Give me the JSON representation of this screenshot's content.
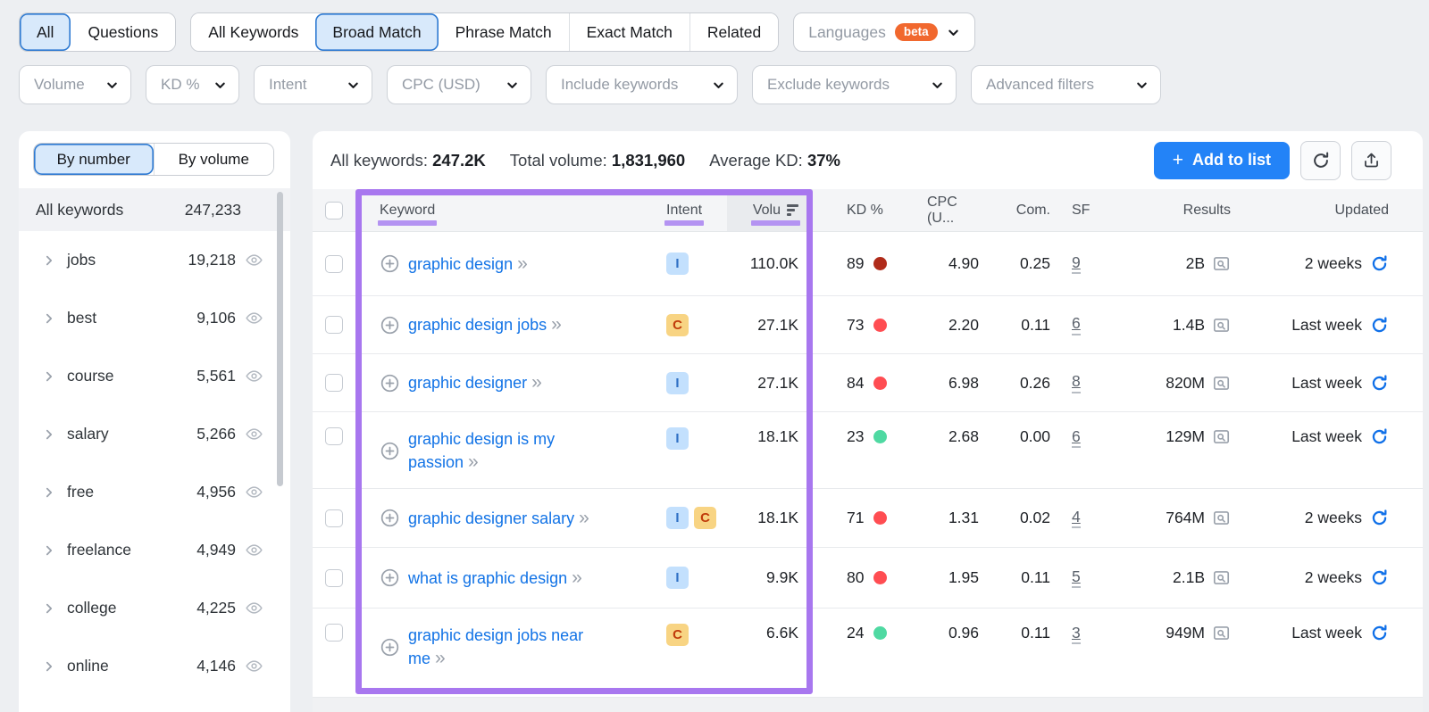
{
  "top_bar": {
    "view_tabs": [
      {
        "label": "All",
        "selected": true
      },
      {
        "label": "Questions",
        "selected": false
      }
    ],
    "match_tabs": [
      {
        "label": "All Keywords",
        "selected": false
      },
      {
        "label": "Broad Match",
        "selected": true
      },
      {
        "label": "Phrase Match",
        "selected": false
      },
      {
        "label": "Exact Match",
        "selected": false
      },
      {
        "label": "Related",
        "selected": false
      }
    ],
    "languages": {
      "label": "Languages",
      "badge": "beta"
    }
  },
  "filters": [
    {
      "label": "Volume"
    },
    {
      "label": "KD %"
    },
    {
      "label": "Intent"
    },
    {
      "label": "CPC (USD)"
    },
    {
      "label": "Include keywords"
    },
    {
      "label": "Exclude keywords"
    },
    {
      "label": "Advanced filters"
    }
  ],
  "sidebar": {
    "tabs": [
      {
        "label": "By number",
        "selected": true
      },
      {
        "label": "By volume",
        "selected": false
      }
    ],
    "all_keywords": {
      "label": "All keywords",
      "count": "247,233"
    },
    "groups": [
      {
        "label": "jobs",
        "count": "19,218"
      },
      {
        "label": "best",
        "count": "9,106"
      },
      {
        "label": "course",
        "count": "5,561"
      },
      {
        "label": "salary",
        "count": "5,266"
      },
      {
        "label": "free",
        "count": "4,956"
      },
      {
        "label": "freelance",
        "count": "4,949"
      },
      {
        "label": "college",
        "count": "4,225"
      },
      {
        "label": "online",
        "count": "4,146"
      }
    ]
  },
  "summary": {
    "all_keywords_label": "All keywords:",
    "all_keywords_value": "247.2K",
    "total_volume_label": "Total volume:",
    "total_volume_value": "1,831,960",
    "average_kd_label": "Average KD:",
    "average_kd_value": "37%",
    "add_to_list_label": "Add to list"
  },
  "table": {
    "columns": {
      "keyword": "Keyword",
      "intent": "Intent",
      "volume": "Volu",
      "kd": "KD %",
      "cpc": "CPC (U...",
      "com": "Com.",
      "sf": "SF",
      "results": "Results",
      "updated": "Updated"
    },
    "intent_styles": {
      "I": {
        "bg": "#c3e0fd",
        "fg": "#2e6fc4",
        "name": "informational"
      },
      "C": {
        "bg": "#f8d483",
        "fg": "#c03b0b",
        "name": "commercial"
      }
    },
    "kd_colors": {
      "very-hard": "#b02b1a",
      "hard": "#ff4d52",
      "easy": "#4fd9a2"
    },
    "rows": [
      {
        "keyword": "graphic design",
        "intents": [
          "I"
        ],
        "volume": "110.0K",
        "kd": "89",
        "kd_level": "very-hard",
        "cpc": "4.90",
        "com": "0.25",
        "sf": "9",
        "results": "2B",
        "updated": "2 weeks"
      },
      {
        "keyword": "graphic design jobs",
        "intents": [
          "C"
        ],
        "volume": "27.1K",
        "kd": "73",
        "kd_level": "hard",
        "cpc": "2.20",
        "com": "0.11",
        "sf": "6",
        "results": "1.4B",
        "updated": "Last week"
      },
      {
        "keyword": "graphic designer",
        "intents": [
          "I"
        ],
        "volume": "27.1K",
        "kd": "84",
        "kd_level": "hard",
        "cpc": "6.98",
        "com": "0.26",
        "sf": "8",
        "results": "820M",
        "updated": "Last week"
      },
      {
        "keyword": "graphic design is my passion",
        "intents": [
          "I"
        ],
        "volume": "18.1K",
        "kd": "23",
        "kd_level": "easy",
        "cpc": "2.68",
        "com": "0.00",
        "sf": "6",
        "results": "129M",
        "updated": "Last week"
      },
      {
        "keyword": "graphic designer salary",
        "intents": [
          "I",
          "C"
        ],
        "volume": "18.1K",
        "kd": "71",
        "kd_level": "hard",
        "cpc": "1.31",
        "com": "0.02",
        "sf": "4",
        "results": "764M",
        "updated": "2 weeks"
      },
      {
        "keyword": "what is graphic design",
        "intents": [
          "I"
        ],
        "volume": "9.9K",
        "kd": "80",
        "kd_level": "hard",
        "cpc": "1.95",
        "com": "0.11",
        "sf": "5",
        "results": "2.1B",
        "updated": "2 weeks"
      },
      {
        "keyword": "graphic design jobs near me",
        "intents": [
          "C"
        ],
        "volume": "6.6K",
        "kd": "24",
        "kd_level": "easy",
        "cpc": "0.96",
        "com": "0.11",
        "sf": "3",
        "results": "949M",
        "updated": "Last week"
      }
    ]
  },
  "colors": {
    "highlight_purple": "#a877ef",
    "header_underline": "#b493f2",
    "accent_blue": "#2383f7",
    "beta_orange": "#f1682e",
    "link_blue": "#1273e6"
  }
}
